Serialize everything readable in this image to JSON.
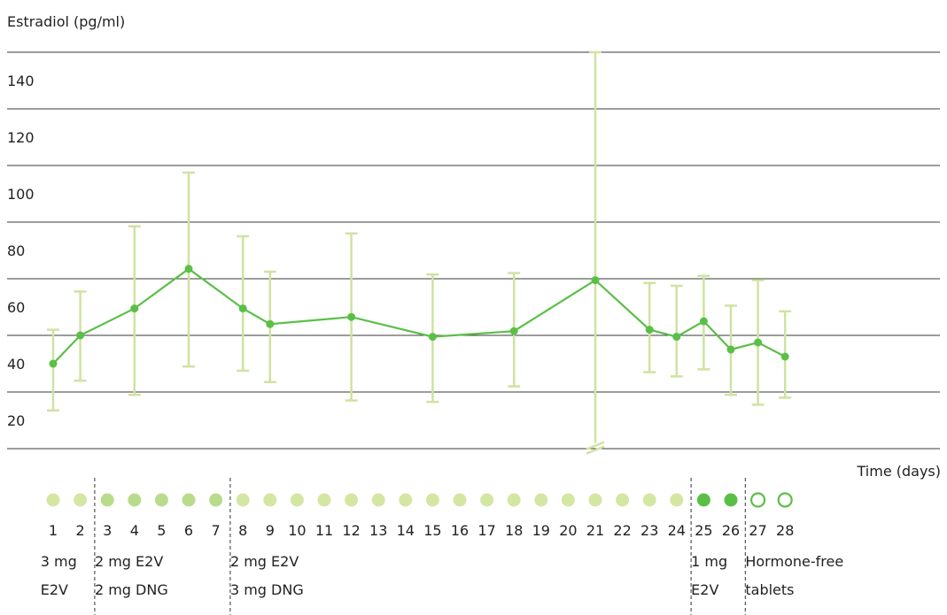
{
  "chart_data": {
    "type": "line",
    "ylabel": "Estradiol (pg/ml)",
    "xlabel": "Time (days)",
    "ylim": [
      10,
      150
    ],
    "yticks": [
      20,
      40,
      60,
      80,
      100,
      120,
      140
    ],
    "grid": true,
    "series": [
      {
        "x": [
          1,
          2,
          4,
          6,
          8,
          9,
          12,
          15,
          18,
          21,
          23,
          24,
          25,
          26,
          27,
          28
        ],
        "values": [
          40,
          50,
          59.5,
          73.5,
          59.5,
          54,
          56.5,
          49.5,
          51.5,
          69.5,
          52,
          49.5,
          55,
          45,
          47.5,
          42.5
        ],
        "error_low": [
          23.5,
          34,
          29,
          39,
          37.5,
          33.5,
          27,
          26.5,
          32,
          12,
          37,
          35.5,
          38,
          29,
          25.5,
          28
        ],
        "error_high": [
          52,
          65.5,
          88.5,
          107.5,
          85,
          72.5,
          86,
          71.5,
          72,
          150,
          68.5,
          67.5,
          71,
          60.5,
          69.5,
          58.5
        ]
      }
    ],
    "break_marker_x": 21,
    "day_labels": [
      "1",
      "2",
      "3",
      "4",
      "5",
      "6",
      "7",
      "8",
      "9",
      "10",
      "11",
      "12",
      "13",
      "14",
      "15",
      "16",
      "17",
      "18",
      "19",
      "20",
      "21",
      "22",
      "23",
      "24",
      "25",
      "26",
      "27",
      "28"
    ],
    "dose_colors": {
      "e2v_3mg": "#d3e7a3",
      "e2v_dng_2_2": "#b9dc8c",
      "e2v_dng_2_3": "#d3e7a3",
      "e2v_1mg": "#5bbf47",
      "hormone_free": "#5bbf47",
      "line": "#5bbf47",
      "errorbar": "#cfe3a1"
    },
    "dose_days": [
      {
        "days": [
          1,
          2
        ],
        "color_key": "e2v_3mg",
        "filled": true
      },
      {
        "days": [
          3,
          4,
          5,
          6,
          7
        ],
        "color_key": "e2v_dng_2_2",
        "filled": true
      },
      {
        "days": [
          8,
          9,
          10,
          11,
          12,
          13,
          14,
          15,
          16,
          17,
          18,
          19,
          20,
          21,
          22,
          23,
          24
        ],
        "color_key": "e2v_dng_2_3",
        "filled": true
      },
      {
        "days": [
          25,
          26
        ],
        "color_key": "e2v_1mg",
        "filled": true
      },
      {
        "days": [
          27,
          28
        ],
        "color_key": "hormone_free",
        "filled": false
      }
    ],
    "regimens": [
      {
        "line1": "3 mg",
        "line2": "E2V"
      },
      {
        "line1": "2 mg E2V",
        "line2": "2 mg DNG"
      },
      {
        "line1": "2 mg E2V",
        "line2": "3 mg DNG"
      },
      {
        "line1": "1 mg",
        "line2": "E2V"
      },
      {
        "line1": "Hormone-free",
        "line2": "tablets"
      }
    ]
  }
}
